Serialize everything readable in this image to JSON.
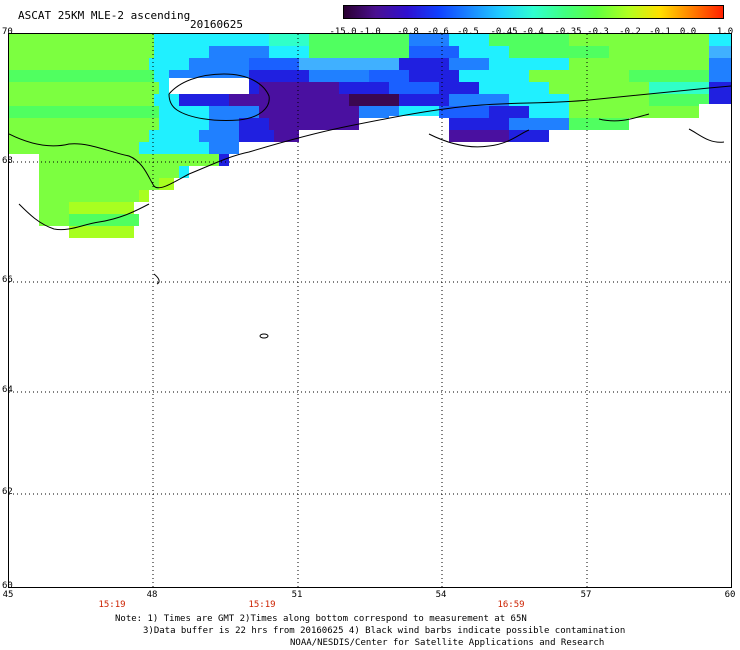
{
  "title": "ASCAT 25KM MLE-2 ascending",
  "date": "20160625",
  "colorbar": {
    "labels": [
      "-15.0",
      "-1.0",
      "-0.8",
      "-0.6",
      "-0.5",
      "-0.45",
      "-0.4",
      "-0.35",
      "-0.3",
      "-0.2",
      "-0.1",
      "0.0",
      "1.0"
    ],
    "colors": [
      "#2a0030",
      "#4a1090",
      "#3010d0",
      "#1040ff",
      "#1a88ff",
      "#20d0ff",
      "#30ffd0",
      "#40ff80",
      "#60ff40",
      "#b0ff20",
      "#ffe000",
      "#ff8000",
      "#ff2000"
    ]
  },
  "map": {
    "lat_labels": [
      "70",
      "68",
      "66",
      "64",
      "62",
      "60"
    ],
    "lon_labels": [
      "45",
      "48",
      "51",
      "54",
      "57",
      "60"
    ],
    "lat_range": [
      60,
      70
    ],
    "lon_range": [
      45,
      60
    ]
  },
  "times": [
    "15:19",
    "15:19",
    "16:59"
  ],
  "notes": {
    "line1": "Note: 1) Times are GMT 2)Times along bottom correspond to measurement at 65N",
    "line2": "3)Data buffer is 22 hrs from 20160625 4) Black wind barbs indicate possible contamination",
    "line3": "NOAA/NESDIS/Center for Satellite Applications and Research"
  }
}
